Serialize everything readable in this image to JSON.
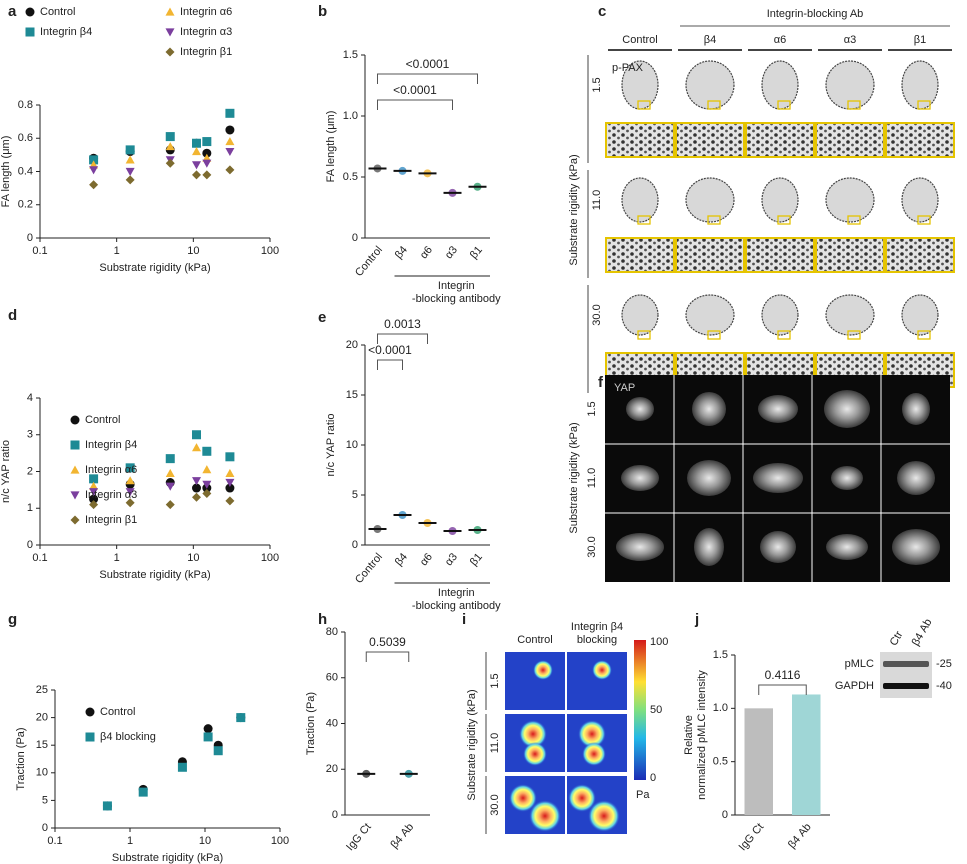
{
  "chart_data": [
    {
      "panel": "a",
      "type": "scatter",
      "xscale": "log",
      "legend": "top",
      "xlabel": "Substrate rigidity (kPa)",
      "ylabel": "FA length (μm)",
      "xlim": [
        0.1,
        100
      ],
      "xticks": [
        0.1,
        1,
        10,
        100
      ],
      "ylim": [
        0,
        0.8
      ],
      "yticks": [
        0,
        0.2,
        0.4,
        0.6,
        0.8
      ],
      "x": [
        0.5,
        1.5,
        5,
        11,
        15,
        30
      ],
      "series": [
        {
          "name": "Control",
          "color": "#111111",
          "marker": "circle",
          "values": [
            0.48,
            0.52,
            0.53,
            0.57,
            0.51,
            0.65
          ]
        },
        {
          "name": "Integrin β4",
          "color": "#1e8a95",
          "marker": "square",
          "values": [
            0.47,
            0.53,
            0.61,
            0.57,
            0.58,
            0.75
          ]
        },
        {
          "name": "Integrin α6",
          "color": "#f2b531",
          "marker": "triangle",
          "values": [
            0.44,
            0.47,
            0.55,
            0.52,
            0.48,
            0.58
          ]
        },
        {
          "name": "Integrin α3",
          "color": "#7b3f9e",
          "marker": "triangle-down",
          "values": [
            0.41,
            0.4,
            0.47,
            0.44,
            0.45,
            0.52
          ]
        },
        {
          "name": "Integrin β1",
          "color": "#7d6b2f",
          "marker": "diamond",
          "values": [
            0.32,
            0.35,
            0.45,
            0.38,
            0.38,
            0.41
          ]
        }
      ]
    },
    {
      "panel": "b",
      "type": "strip",
      "ylabel": "FA length (μm)",
      "categories": [
        "Control",
        "β4",
        "α6",
        "α3",
        "β1"
      ],
      "values": [
        0.57,
        0.55,
        0.53,
        0.37,
        0.42
      ],
      "colors": [
        "#555555",
        "#3a8fc4",
        "#f2b531",
        "#7b3f9e",
        "#2e9e6b"
      ],
      "ylim": [
        0,
        1.5
      ],
      "yticks": [
        0,
        0.5,
        {
          "value": 1,
          "label": "1.0"
        },
        1.5
      ],
      "annotations": [
        "<0.0001",
        "<0.0001"
      ],
      "group_label": [
        "Integrin",
        "-blocking antibody"
      ]
    },
    {
      "panel": "d",
      "type": "scatter",
      "xscale": "log",
      "xlabel": "Substrate rigidity (kPa)",
      "ylabel": "n/c YAP ratio",
      "xlim": [
        0.1,
        100
      ],
      "xticks": [
        0.1,
        1,
        10,
        100
      ],
      "ylim": [
        0,
        4
      ],
      "yticks": [
        0,
        1,
        2,
        3,
        4
      ],
      "x": [
        0.5,
        1.5,
        5,
        11,
        15,
        30
      ],
      "series": [
        {
          "name": "Control",
          "color": "#111111",
          "marker": "circle",
          "values": [
            1.25,
            1.65,
            1.7,
            1.55,
            1.55,
            1.55
          ]
        },
        {
          "name": "Integrin β4",
          "color": "#1e8a95",
          "marker": "square",
          "values": [
            1.8,
            2.1,
            2.35,
            3.0,
            2.55,
            2.4
          ]
        },
        {
          "name": "Integrin α6",
          "color": "#f2b531",
          "marker": "triangle",
          "values": [
            1.6,
            1.75,
            1.95,
            2.65,
            2.05,
            1.95
          ]
        },
        {
          "name": "Integrin α3",
          "color": "#7b3f9e",
          "marker": "triangle-down",
          "values": [
            1.45,
            1.45,
            1.6,
            1.75,
            1.65,
            1.7
          ]
        },
        {
          "name": "Integrin β1",
          "color": "#7d6b2f",
          "marker": "diamond",
          "values": [
            1.1,
            1.15,
            1.1,
            1.3,
            1.4,
            1.2
          ]
        }
      ]
    },
    {
      "panel": "e",
      "type": "strip",
      "ylabel": "n/c YAP ratio",
      "categories": [
        "Control",
        "β4",
        "α6",
        "α3",
        "β1"
      ],
      "values": [
        1.6,
        3.0,
        2.2,
        1.4,
        1.5
      ],
      "colors": [
        "#555555",
        "#3a8fc4",
        "#f2b531",
        "#7b3f9e",
        "#2e9e6b"
      ],
      "ylim": [
        0,
        20
      ],
      "yticks": [
        0,
        5,
        10,
        15,
        20
      ],
      "annotations": [
        "0.0013",
        "<0.0001"
      ],
      "group_label": [
        "Integrin",
        "-blocking antibody"
      ]
    },
    {
      "panel": "g",
      "type": "scatter",
      "xscale": "log",
      "legend": "upper left",
      "xlabel": "Substrate rigidity (kPa)",
      "ylabel": "Traction (Pa)",
      "xlim": [
        0.1,
        100
      ],
      "xticks": [
        0.1,
        1,
        10,
        100
      ],
      "ylim": [
        0,
        25
      ],
      "yticks": [
        0,
        5,
        10,
        15,
        20,
        25
      ],
      "x": [
        0.5,
        1.5,
        5,
        11,
        15,
        30
      ],
      "series": [
        {
          "name": "Control",
          "color": "#111111",
          "marker": "circle",
          "values": [
            4,
            7,
            12,
            18,
            15,
            20
          ]
        },
        {
          "name": "β4 blocking",
          "color": "#1e8a95",
          "marker": "square",
          "values": [
            4,
            6.5,
            11,
            16.5,
            14,
            20
          ]
        }
      ]
    },
    {
      "panel": "h",
      "type": "strip",
      "ylabel": "Traction (Pa)",
      "categories": [
        "IgG Ct",
        "β4 Ab"
      ],
      "values": [
        18,
        18
      ],
      "colors": [
        "#333333",
        "#1e8a95"
      ],
      "ylim": [
        0,
        80
      ],
      "yticks": [
        0,
        20,
        40,
        60,
        80
      ],
      "annotations": [
        "0.5039"
      ]
    },
    {
      "panel": "j",
      "type": "bar",
      "ylabel": [
        "Relative",
        "normalized pMLC intensity"
      ],
      "categories": [
        "IgG Ct",
        "β4 Ab"
      ],
      "values": [
        1.0,
        1.13
      ],
      "colors": [
        "#bdbdbd",
        "#9fd6d6"
      ],
      "ylim": [
        0,
        1.5
      ],
      "yticks": [
        0,
        0.5,
        {
          "value": 1,
          "label": "1.0"
        },
        1.5
      ],
      "annotations": [
        "0.4116"
      ]
    }
  ],
  "panel_c": {
    "label": "c",
    "header": "Integrin-blocking Ab",
    "columns": [
      "Control",
      "β4",
      "α6",
      "α3",
      "β1"
    ],
    "rows": [
      "1.5",
      "11.0",
      "30.0"
    ],
    "ylabel": "Substrate rigidity (kPa)",
    "stain": "p-PAX"
  },
  "panel_f": {
    "label": "f",
    "stain": "YAP",
    "rows": [
      "1.5",
      "11.0",
      "30.0"
    ],
    "ylabel": "Substrate rigidity (kPa)"
  },
  "panel_i": {
    "label": "i",
    "columns": [
      [
        "Control"
      ],
      [
        "Integrin β4",
        "blocking"
      ]
    ],
    "rows": [
      "1.5",
      "11.0",
      "30.0"
    ],
    "ylabel": "Substrate rigidity (kPa)",
    "colorbar_ticks": [
      "100",
      "50",
      "0"
    ],
    "colorbar_unit": "Pa"
  },
  "panel_j_blot": {
    "lanes": [
      "Ctr",
      "β4 Ab"
    ],
    "bands": [
      "pMLC",
      "GAPDH"
    ],
    "markers": [
      "-25",
      "-40"
    ]
  }
}
